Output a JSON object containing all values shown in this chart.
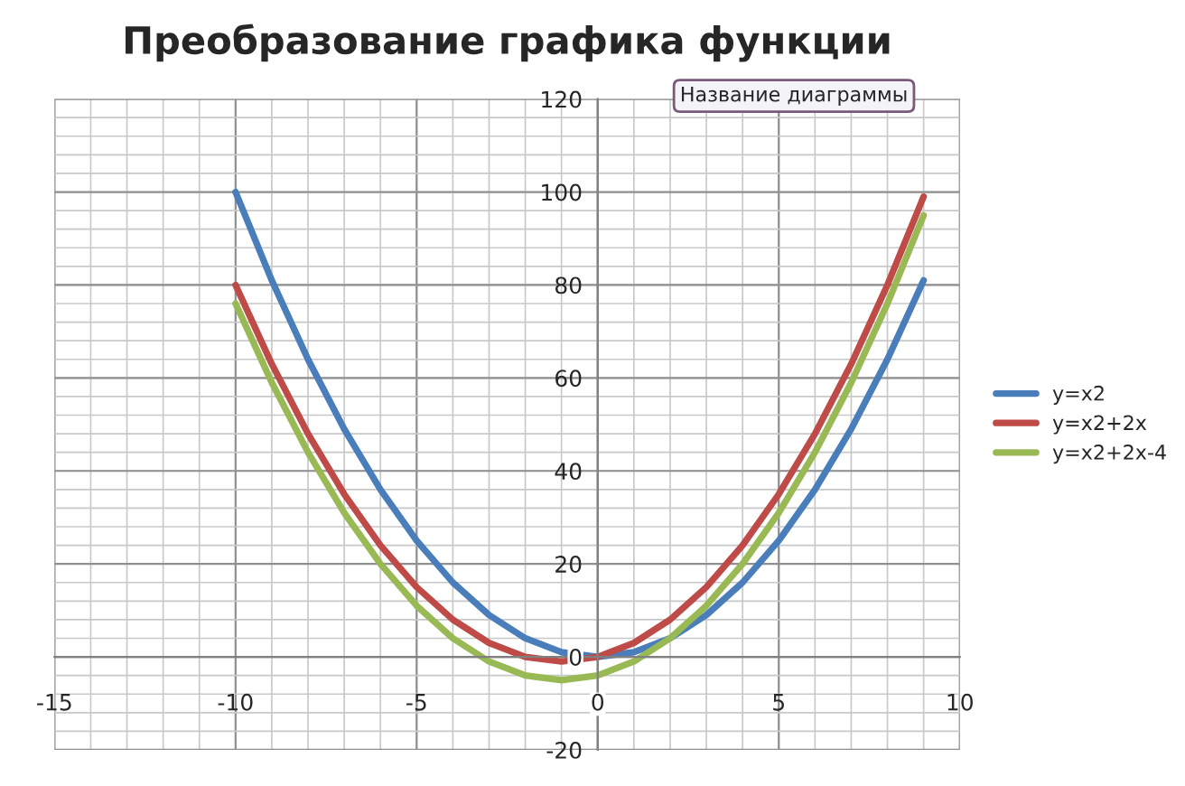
{
  "chart_data": {
    "type": "line",
    "title": "Преобразование графика функции",
    "annotations": [
      "Название диаграммы"
    ],
    "x": [
      -10,
      -9,
      -8,
      -7,
      -6,
      -5,
      -4,
      -3,
      -2,
      -1,
      0,
      1,
      2,
      3,
      4,
      5,
      6,
      7,
      8,
      9
    ],
    "series": [
      {
        "name": "y=x2",
        "color": "#4a7ebb",
        "values": [
          100,
          81,
          64,
          49,
          36,
          25,
          16,
          9,
          4,
          1,
          0,
          1,
          4,
          9,
          16,
          25,
          36,
          49,
          64,
          81
        ]
      },
      {
        "name": "y=x2+2x",
        "color": "#be4b48",
        "values": [
          80,
          63,
          48,
          35,
          24,
          15,
          8,
          3,
          0,
          -1,
          0,
          3,
          8,
          15,
          24,
          35,
          48,
          63,
          80,
          99
        ]
      },
      {
        "name": "y=x2+2x-4",
        "color": "#98b954",
        "values": [
          76,
          59,
          44,
          31,
          20,
          11,
          4,
          -1,
          -4,
          -5,
          -4,
          -1,
          4,
          11,
          20,
          31,
          44,
          59,
          76,
          95
        ]
      }
    ],
    "xlim": [
      -15,
      10
    ],
    "xticks": [
      -15,
      -10,
      -5,
      0,
      5,
      10
    ],
    "ylim": [
      -20,
      120
    ],
    "yticks": [
      -20,
      0,
      20,
      40,
      60,
      80,
      100,
      120
    ],
    "grid": true,
    "legend": "right",
    "marker": "none",
    "line_style": "solid"
  }
}
